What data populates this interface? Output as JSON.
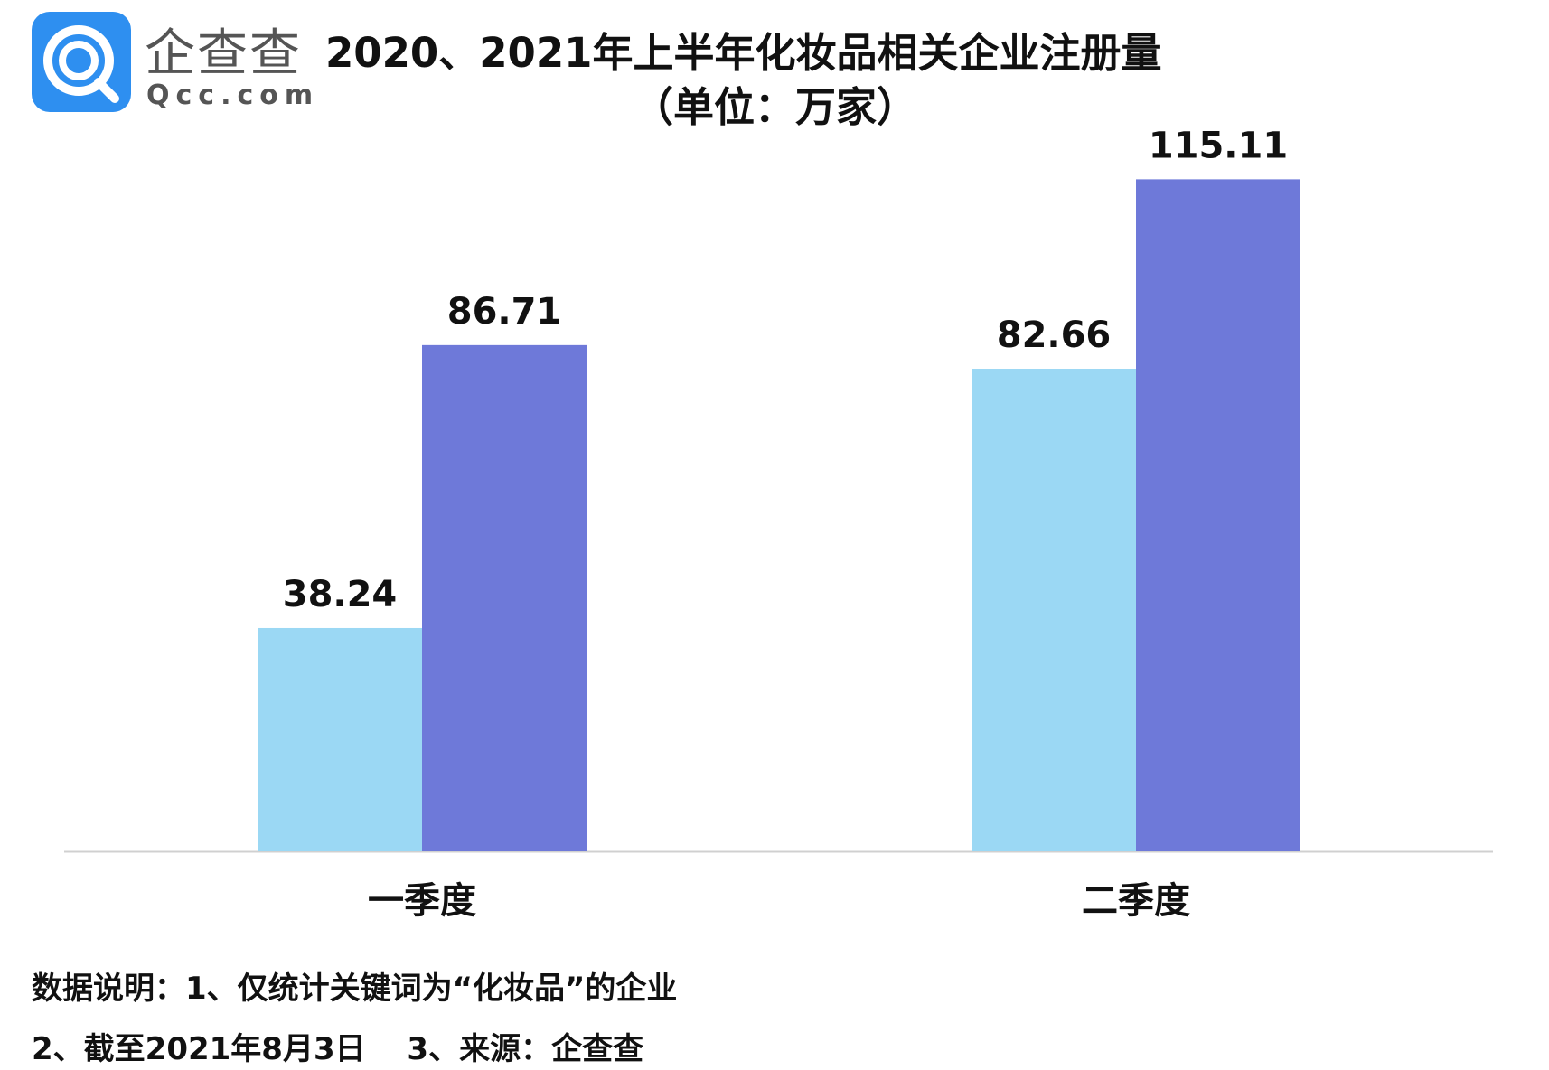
{
  "brand": {
    "name_cn": "企查查",
    "name_en": "Qcc.com",
    "color": "#2e8ff0"
  },
  "chart_data": {
    "type": "bar",
    "title": "2020、2021年上半年化妆品相关企业注册量",
    "subtitle": "（单位：万家）",
    "categories": [
      "一季度",
      "二季度"
    ],
    "series": [
      {
        "values": [
          38.24,
          82.66
        ],
        "color": "#9bd8f4"
      },
      {
        "values": [
          86.71,
          115.11
        ],
        "color": "#6e79d9"
      }
    ],
    "ylim": [
      0,
      130
    ],
    "grid": false,
    "legend": "none"
  },
  "notes": {
    "line1": "数据说明：1、仅统计关键词为“化妆品”的企业",
    "line2": "2、截至2021年8月3日　 3、来源：企查查"
  }
}
